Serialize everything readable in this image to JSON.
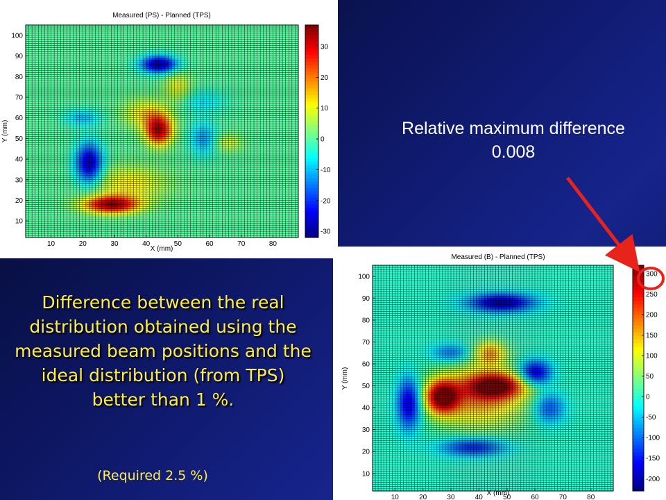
{
  "annotation": {
    "line1": "Relative maximum difference",
    "line2": "0.008"
  },
  "caption": {
    "text": "Difference between the real distribution obtained using the measured beam positions and the ideal distribution (from TPS) better than 1 %.",
    "note": "(Required 2.5 %)"
  },
  "colors": {
    "caption_text": "#ffee44",
    "arrow": "#e8231b",
    "highlight_circle": "#e8231b",
    "grid_lines": "#000000"
  },
  "chart_data": [
    {
      "type": "heatmap",
      "title": "Measured (PS) - Planned (TPS)",
      "xlabel": "X (mm)",
      "ylabel": "Y (mm)",
      "xlim": [
        2,
        88
      ],
      "ylim": [
        2,
        105
      ],
      "xticks": [
        10,
        20,
        30,
        40,
        50,
        60,
        70,
        80
      ],
      "yticks": [
        10,
        20,
        30,
        40,
        50,
        60,
        70,
        80,
        90,
        100
      ],
      "colorbar": {
        "min": -32,
        "max": 37,
        "ticks": [
          -30,
          -20,
          -10,
          0,
          10,
          20,
          30
        ]
      },
      "grid": true,
      "blobs": [
        {
          "x": 44,
          "y": 86,
          "value": -30,
          "sx": 4,
          "sy": 3
        },
        {
          "x": 44,
          "y": 54,
          "value": 33,
          "sx": 3,
          "sy": 5
        },
        {
          "x": 40,
          "y": 62,
          "value": 12,
          "sx": 5,
          "sy": 5
        },
        {
          "x": 22,
          "y": 38,
          "value": -28,
          "sx": 3,
          "sy": 7
        },
        {
          "x": 29,
          "y": 18,
          "value": 35,
          "sx": 6,
          "sy": 3
        },
        {
          "x": 35,
          "y": 28,
          "value": 12,
          "sx": 8,
          "sy": 6
        },
        {
          "x": 50,
          "y": 75,
          "value": 10,
          "sx": 3,
          "sy": 5
        },
        {
          "x": 20,
          "y": 60,
          "value": -10,
          "sx": 4,
          "sy": 3
        },
        {
          "x": 58,
          "y": 50,
          "value": -12,
          "sx": 3,
          "sy": 6
        },
        {
          "x": 66,
          "y": 48,
          "value": 8,
          "sx": 3,
          "sy": 3
        },
        {
          "x": 58,
          "y": 68,
          "value": -7,
          "sx": 5,
          "sy": 4
        }
      ]
    },
    {
      "type": "heatmap",
      "title": "Measured (B) - Planned (TPS)",
      "xlabel": "X (mm)",
      "ylabel": "Y (mm)",
      "xlim": [
        2,
        88
      ],
      "ylim": [
        2,
        105
      ],
      "xticks": [
        10,
        20,
        30,
        40,
        50,
        60,
        70,
        80
      ],
      "yticks": [
        10,
        20,
        30,
        40,
        50,
        60,
        70,
        80,
        90,
        100
      ],
      "colorbar": {
        "min": -230,
        "max": 320,
        "ticks": [
          -200,
          -150,
          -100,
          -50,
          0,
          50,
          100,
          150,
          200,
          250,
          300
        ]
      },
      "grid": true,
      "blobs": [
        {
          "x": 27,
          "y": 45,
          "value": 300,
          "sx": 4,
          "sy": 5
        },
        {
          "x": 46,
          "y": 50,
          "value": 250,
          "sx": 7,
          "sy": 4
        },
        {
          "x": 40,
          "y": 45,
          "value": 170,
          "sx": 12,
          "sy": 10
        },
        {
          "x": 44,
          "y": 65,
          "value": 150,
          "sx": 4,
          "sy": 4
        },
        {
          "x": 15,
          "y": 42,
          "value": -200,
          "sx": 3,
          "sy": 8
        },
        {
          "x": 48,
          "y": 88,
          "value": -210,
          "sx": 8,
          "sy": 3
        },
        {
          "x": 38,
          "y": 22,
          "value": -150,
          "sx": 8,
          "sy": 3
        },
        {
          "x": 60,
          "y": 56,
          "value": -200,
          "sx": 4,
          "sy": 4
        },
        {
          "x": 65,
          "y": 40,
          "value": -120,
          "sx": 4,
          "sy": 5
        },
        {
          "x": 30,
          "y": 65,
          "value": -100,
          "sx": 5,
          "sy": 3
        }
      ]
    }
  ]
}
